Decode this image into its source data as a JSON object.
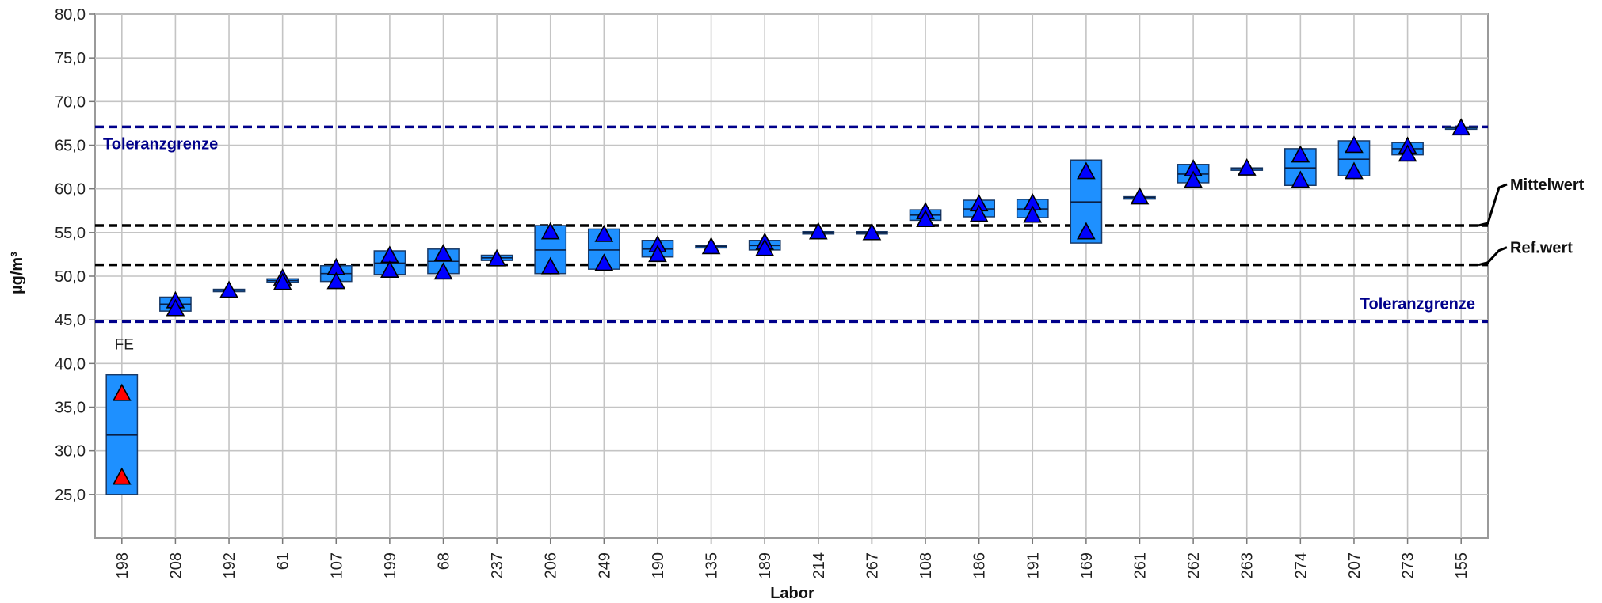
{
  "chart_data": {
    "type": "box",
    "xlabel": "Labor",
    "ylabel": "µg/m³",
    "ylim": [
      20.0,
      80.0
    ],
    "yticks": [
      "25,0",
      "30,0",
      "35,0",
      "40,0",
      "45,0",
      "50,0",
      "55,0",
      "60,0",
      "65,0",
      "70,0",
      "75,0",
      "80,0"
    ],
    "grid": true,
    "colors": {
      "box": "#1e90ff",
      "marker": "#0000ff",
      "flagged_marker": "#ff0000",
      "tolerance_line": "#00008b",
      "mean_line": "#000000"
    },
    "reference_lines": [
      {
        "label": "Toleranzgrenze",
        "value": 67.1,
        "kind": "tolerance",
        "label_position": "top-left"
      },
      {
        "label": "Toleranzgrenze",
        "value": 44.8,
        "kind": "tolerance",
        "label_position": "bottom-right"
      },
      {
        "label": "Mittelwert",
        "value": 55.8,
        "kind": "mean",
        "label_position": "right"
      },
      {
        "label": "Ref.wert",
        "value": 51.3,
        "kind": "reference",
        "label_position": "right"
      }
    ],
    "labs": [
      {
        "id": "198",
        "low": 25.0,
        "high": 38.7,
        "median": 31.8,
        "values": [
          36.6,
          27.0
        ],
        "flag": "FE"
      },
      {
        "id": "208",
        "low": 46.0,
        "high": 47.6,
        "median": 46.8,
        "values": [
          47.2,
          46.3
        ]
      },
      {
        "id": "192",
        "low": 48.3,
        "high": 48.5,
        "median": 48.4,
        "values": [
          48.4
        ]
      },
      {
        "id": "61",
        "low": 49.3,
        "high": 49.7,
        "median": 49.5,
        "values": [
          49.8,
          49.3
        ]
      },
      {
        "id": "107",
        "low": 49.4,
        "high": 51.2,
        "median": 50.3,
        "values": [
          51.0,
          49.4
        ]
      },
      {
        "id": "199",
        "low": 50.2,
        "high": 52.9,
        "median": 51.5,
        "values": [
          52.4,
          50.7
        ]
      },
      {
        "id": "68",
        "low": 50.3,
        "high": 53.1,
        "median": 51.7,
        "values": [
          52.6,
          50.5
        ]
      },
      {
        "id": "237",
        "low": 51.8,
        "high": 52.4,
        "median": 52.1,
        "values": [
          52.0
        ]
      },
      {
        "id": "206",
        "low": 50.3,
        "high": 55.8,
        "median": 53.0,
        "values": [
          55.1,
          51.1
        ]
      },
      {
        "id": "249",
        "low": 50.8,
        "high": 55.4,
        "median": 53.0,
        "values": [
          54.8,
          51.5
        ]
      },
      {
        "id": "190",
        "low": 52.2,
        "high": 54.1,
        "median": 53.1,
        "values": [
          53.6,
          52.5
        ]
      },
      {
        "id": "135",
        "low": 53.4,
        "high": 53.5,
        "median": 53.4,
        "values": [
          53.4
        ]
      },
      {
        "id": "189",
        "low": 53.0,
        "high": 54.1,
        "median": 53.5,
        "values": [
          53.9,
          53.2
        ]
      },
      {
        "id": "214",
        "low": 55.0,
        "high": 55.1,
        "median": 55.0,
        "values": [
          55.1
        ]
      },
      {
        "id": "267",
        "low": 55.0,
        "high": 55.1,
        "median": 55.0,
        "values": [
          55.0
        ]
      },
      {
        "id": "108",
        "low": 56.4,
        "high": 57.6,
        "median": 57.0,
        "values": [
          57.4,
          56.5
        ]
      },
      {
        "id": "186",
        "low": 56.8,
        "high": 58.7,
        "median": 57.7,
        "values": [
          58.3,
          57.1
        ]
      },
      {
        "id": "191",
        "low": 56.7,
        "high": 58.8,
        "median": 57.7,
        "values": [
          58.4,
          57.0
        ]
      },
      {
        "id": "169",
        "low": 53.8,
        "high": 63.3,
        "median": 58.5,
        "values": [
          62.0,
          55.1
        ]
      },
      {
        "id": "261",
        "low": 59.0,
        "high": 59.1,
        "median": 59.0,
        "values": [
          59.1
        ]
      },
      {
        "id": "262",
        "low": 60.7,
        "high": 62.8,
        "median": 61.7,
        "values": [
          62.3,
          61.0
        ]
      },
      {
        "id": "263",
        "low": 62.3,
        "high": 62.4,
        "median": 62.3,
        "values": [
          62.4
        ]
      },
      {
        "id": "274",
        "low": 60.4,
        "high": 64.6,
        "median": 62.4,
        "values": [
          63.9,
          61.0
        ]
      },
      {
        "id": "207",
        "low": 61.5,
        "high": 65.5,
        "median": 63.4,
        "values": [
          65.0,
          62.0
        ]
      },
      {
        "id": "273",
        "low": 63.9,
        "high": 65.3,
        "median": 64.6,
        "values": [
          64.9,
          64.0
        ]
      },
      {
        "id": "155",
        "low": 67.0,
        "high": 67.1,
        "median": 67.0,
        "values": [
          67.0
        ]
      }
    ]
  }
}
